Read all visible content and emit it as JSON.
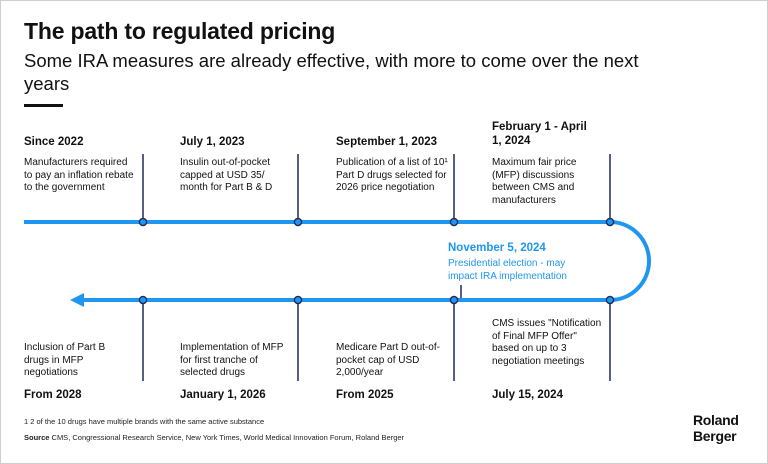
{
  "header": {
    "title": "The path to regulated pricing",
    "subtitle": "Some IRA measures are already effective, with more to come over the next years"
  },
  "colors": {
    "accent": "#1f96f0",
    "connector": "#1f2a5a",
    "text": "#111111"
  },
  "top_events": [
    {
      "date": "Since 2022",
      "description": "Manufacturers required to pay an inflation rebate to the government"
    },
    {
      "date": "July 1, 2023",
      "description": "Insulin out-of-pocket capped at USD 35/ month for Part B & D"
    },
    {
      "date": "September 1, 2023",
      "description": "Publication of a list of 10¹ Part D drugs selected for 2026 price negotiation"
    },
    {
      "date": "February 1 - April 1, 2024",
      "description": "Maximum fair price (MFP) discussions between CMS and manufacturers"
    }
  ],
  "highlight_event": {
    "date": "November 5, 2024",
    "description": "Presidential election - may impact IRA implementation"
  },
  "bottom_events": [
    {
      "date": "From 2028",
      "description": "Inclusion of Part B drugs in MFP negotiations"
    },
    {
      "date": "January 1, 2026",
      "description": "Implementation of MFP for first tranche of selected drugs"
    },
    {
      "date": "From 2025",
      "description": "Medicare Part D out-of-pocket cap of USD 2,000/year"
    },
    {
      "date": "July 15, 2024",
      "description": "CMS issues \"Notification of Final MFP Offer\" based on up to 3 negotiation meetings"
    }
  ],
  "footer": {
    "footnote": "1  2 of the 10 drugs have multiple brands with the same active substance",
    "source_label": "Source",
    "source_text": " CMS, Congressional Research Service, New York Times, World Medical Innovation Forum, Roland Berger",
    "brand_line1": "Roland",
    "brand_line2": "Berger"
  }
}
